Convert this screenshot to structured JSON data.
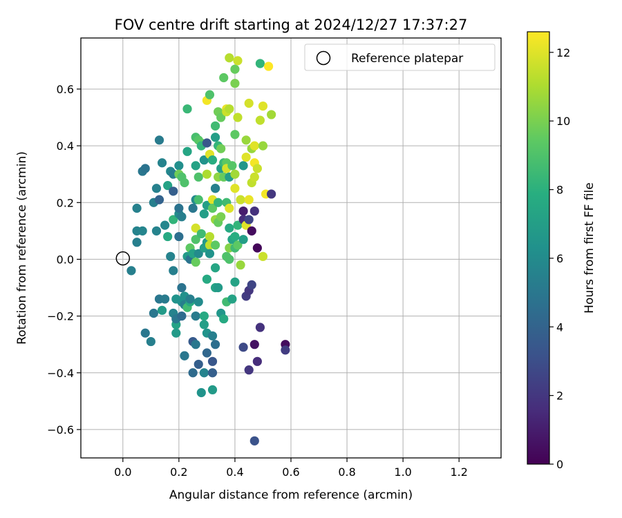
{
  "chart_data": {
    "type": "scatter",
    "title": "FOV centre drift starting at 2024/12/27 17:37:27",
    "xlabel": "Angular distance from reference (arcmin)",
    "ylabel": "Rotation from reference (arcmin)",
    "xlim": [
      -0.15,
      1.35
    ],
    "ylim": [
      -0.7,
      0.78
    ],
    "xticks": [
      0.0,
      0.2,
      0.4,
      0.6,
      0.8,
      1.0,
      1.2
    ],
    "xtick_labels": [
      "0.0",
      "0.2",
      "0.4",
      "0.6",
      "0.8",
      "1.0",
      "1.2"
    ],
    "yticks": [
      -0.6,
      -0.4,
      -0.2,
      0.0,
      0.2,
      0.4,
      0.6
    ],
    "ytick_labels": [
      "−0.6",
      "−0.4",
      "−0.2",
      "0.0",
      "0.2",
      "0.4",
      "0.6"
    ],
    "grid": true,
    "legend": {
      "placement": "top-right",
      "entries": [
        "Reference platepar"
      ]
    },
    "colorbar": {
      "label": "Hours from first FF file",
      "colormap": "viridis",
      "range": [
        0,
        12.6
      ],
      "ticks": [
        0,
        2,
        4,
        6,
        8,
        10,
        12
      ],
      "tick_labels": [
        "0",
        "2",
        "4",
        "6",
        "8",
        "10",
        "12"
      ]
    },
    "reference_point": {
      "name": "Reference platepar",
      "x": 0.0,
      "y": 0.0
    },
    "points": [
      {
        "x": 0.03,
        "y": -0.04,
        "h": 5.4
      },
      {
        "x": 0.05,
        "y": 0.06,
        "h": 5.4
      },
      {
        "x": 0.05,
        "y": 0.1,
        "h": 5.6
      },
      {
        "x": 0.05,
        "y": 0.18,
        "h": 5.5
      },
      {
        "x": 0.07,
        "y": 0.1,
        "h": 5.7
      },
      {
        "x": 0.07,
        "y": 0.31,
        "h": 5.0
      },
      {
        "x": 0.08,
        "y": 0.32,
        "h": 4.8
      },
      {
        "x": 0.08,
        "y": -0.26,
        "h": 5.0
      },
      {
        "x": 0.1,
        "y": -0.29,
        "h": 5.4
      },
      {
        "x": 0.11,
        "y": -0.19,
        "h": 5.0
      },
      {
        "x": 0.11,
        "y": 0.2,
        "h": 5.4
      },
      {
        "x": 0.12,
        "y": 0.1,
        "h": 5.6
      },
      {
        "x": 0.12,
        "y": 0.25,
        "h": 5.5
      },
      {
        "x": 0.13,
        "y": 0.42,
        "h": 5.2
      },
      {
        "x": 0.13,
        "y": 0.21,
        "h": 4.0
      },
      {
        "x": 0.13,
        "y": -0.14,
        "h": 5.0
      },
      {
        "x": 0.14,
        "y": -0.18,
        "h": 6.8
      },
      {
        "x": 0.14,
        "y": 0.34,
        "h": 5.6
      },
      {
        "x": 0.15,
        "y": 0.12,
        "h": 5.8
      },
      {
        "x": 0.15,
        "y": -0.14,
        "h": 5.2
      },
      {
        "x": 0.16,
        "y": 0.26,
        "h": 7.2
      },
      {
        "x": 0.16,
        "y": 0.08,
        "h": 7.6
      },
      {
        "x": 0.17,
        "y": 0.31,
        "h": 5.8
      },
      {
        "x": 0.17,
        "y": 0.01,
        "h": 5.6
      },
      {
        "x": 0.18,
        "y": 0.24,
        "h": 3.8
      },
      {
        "x": 0.18,
        "y": 0.14,
        "h": 8.2
      },
      {
        "x": 0.18,
        "y": 0.3,
        "h": 5.3
      },
      {
        "x": 0.18,
        "y": -0.04,
        "h": 5.4
      },
      {
        "x": 0.18,
        "y": -0.19,
        "h": 5.6
      },
      {
        "x": 0.19,
        "y": -0.23,
        "h": 7.2
      },
      {
        "x": 0.19,
        "y": -0.26,
        "h": 6.8
      },
      {
        "x": 0.19,
        "y": -0.14,
        "h": 6.4
      },
      {
        "x": 0.19,
        "y": -0.21,
        "h": 5.0
      },
      {
        "x": 0.2,
        "y": 0.16,
        "h": 6.0
      },
      {
        "x": 0.2,
        "y": 0.18,
        "h": 4.8
      },
      {
        "x": 0.2,
        "y": 0.33,
        "h": 6.2
      },
      {
        "x": 0.2,
        "y": 0.3,
        "h": 9.8
      },
      {
        "x": 0.2,
        "y": 0.08,
        "h": 4.6
      },
      {
        "x": 0.21,
        "y": 0.29,
        "h": 9.0
      },
      {
        "x": 0.21,
        "y": 0.15,
        "h": 5.4
      },
      {
        "x": 0.21,
        "y": -0.1,
        "h": 4.8
      },
      {
        "x": 0.21,
        "y": -0.15,
        "h": 6.3
      },
      {
        "x": 0.21,
        "y": -0.2,
        "h": 4.4
      },
      {
        "x": 0.22,
        "y": 0.27,
        "h": 9.0
      },
      {
        "x": 0.22,
        "y": -0.34,
        "h": 5.6
      },
      {
        "x": 0.22,
        "y": -0.34,
        "h": 5.0
      },
      {
        "x": 0.22,
        "y": -0.13,
        "h": 6.3
      },
      {
        "x": 0.22,
        "y": -0.16,
        "h": 5.4
      },
      {
        "x": 0.23,
        "y": 0.53,
        "h": 8.4
      },
      {
        "x": 0.23,
        "y": 0.38,
        "h": 7.4
      },
      {
        "x": 0.23,
        "y": 0.01,
        "h": 6.8
      },
      {
        "x": 0.23,
        "y": -0.17,
        "h": 8.6
      },
      {
        "x": 0.24,
        "y": 0.04,
        "h": 9.4
      },
      {
        "x": 0.24,
        "y": 0.0,
        "h": 4.8
      },
      {
        "x": 0.24,
        "y": -0.15,
        "h": 7.6
      },
      {
        "x": 0.24,
        "y": -0.14,
        "h": 5.4
      },
      {
        "x": 0.25,
        "y": 0.18,
        "h": 5.0
      },
      {
        "x": 0.25,
        "y": 0.02,
        "h": 7.2
      },
      {
        "x": 0.25,
        "y": -0.29,
        "h": 3.6
      },
      {
        "x": 0.25,
        "y": -0.4,
        "h": 4.4
      },
      {
        "x": 0.26,
        "y": 0.43,
        "h": 8.8
      },
      {
        "x": 0.26,
        "y": 0.33,
        "h": 7.2
      },
      {
        "x": 0.26,
        "y": 0.21,
        "h": 6.0
      },
      {
        "x": 0.26,
        "y": 0.11,
        "h": 11.8
      },
      {
        "x": 0.26,
        "y": 0.07,
        "h": 9.0
      },
      {
        "x": 0.26,
        "y": -0.01,
        "h": 9.6
      },
      {
        "x": 0.26,
        "y": -0.3,
        "h": 5.0
      },
      {
        "x": 0.26,
        "y": -0.2,
        "h": 5.2
      },
      {
        "x": 0.27,
        "y": 0.42,
        "h": 9.2
      },
      {
        "x": 0.27,
        "y": 0.29,
        "h": 9.0
      },
      {
        "x": 0.27,
        "y": 0.21,
        "h": 8.8
      },
      {
        "x": 0.27,
        "y": 0.02,
        "h": 6.0
      },
      {
        "x": 0.27,
        "y": -0.15,
        "h": 6.0
      },
      {
        "x": 0.27,
        "y": -0.37,
        "h": 3.8
      },
      {
        "x": 0.28,
        "y": 0.41,
        "h": 9.4
      },
      {
        "x": 0.28,
        "y": 0.4,
        "h": 8.2
      },
      {
        "x": 0.28,
        "y": 0.09,
        "h": 8.6
      },
      {
        "x": 0.28,
        "y": -0.47,
        "h": 6.4
      },
      {
        "x": 0.29,
        "y": 0.35,
        "h": 6.4
      },
      {
        "x": 0.29,
        "y": 0.16,
        "h": 7.0
      },
      {
        "x": 0.29,
        "y": 0.04,
        "h": 7.0
      },
      {
        "x": 0.29,
        "y": -0.2,
        "h": 7.6
      },
      {
        "x": 0.29,
        "y": -0.23,
        "h": 7.0
      },
      {
        "x": 0.29,
        "y": -0.4,
        "h": 5.6
      },
      {
        "x": 0.3,
        "y": 0.41,
        "h": 3.4
      },
      {
        "x": 0.3,
        "y": 0.56,
        "h": 12.4
      },
      {
        "x": 0.3,
        "y": 0.3,
        "h": 11.0
      },
      {
        "x": 0.3,
        "y": 0.19,
        "h": 7.0
      },
      {
        "x": 0.3,
        "y": 0.06,
        "h": 6.8
      },
      {
        "x": 0.3,
        "y": -0.07,
        "h": 7.6
      },
      {
        "x": 0.3,
        "y": -0.26,
        "h": 6.4
      },
      {
        "x": 0.3,
        "y": -0.33,
        "h": 4.2
      },
      {
        "x": 0.31,
        "y": 0.58,
        "h": 9.0
      },
      {
        "x": 0.31,
        "y": 0.37,
        "h": 12.0
      },
      {
        "x": 0.31,
        "y": 0.08,
        "h": 11.2
      },
      {
        "x": 0.31,
        "y": 0.05,
        "h": 11.4
      },
      {
        "x": 0.31,
        "y": 0.02,
        "h": 6.4
      },
      {
        "x": 0.32,
        "y": 0.35,
        "h": 7.8
      },
      {
        "x": 0.32,
        "y": 0.21,
        "h": 12.0
      },
      {
        "x": 0.32,
        "y": 0.18,
        "h": 9.4
      },
      {
        "x": 0.32,
        "y": -0.27,
        "h": 5.4
      },
      {
        "x": 0.32,
        "y": -0.36,
        "h": 3.4
      },
      {
        "x": 0.32,
        "y": -0.46,
        "h": 6.8
      },
      {
        "x": 0.32,
        "y": -0.4,
        "h": 3.8
      },
      {
        "x": 0.33,
        "y": 0.43,
        "h": 7.0
      },
      {
        "x": 0.33,
        "y": 0.47,
        "h": 8.6
      },
      {
        "x": 0.33,
        "y": 0.25,
        "h": 8.6
      },
      {
        "x": 0.33,
        "y": 0.25,
        "h": 5.4
      },
      {
        "x": 0.33,
        "y": 0.14,
        "h": 10.6
      },
      {
        "x": 0.33,
        "y": 0.05,
        "h": 9.4
      },
      {
        "x": 0.33,
        "y": -0.03,
        "h": 7.4
      },
      {
        "x": 0.33,
        "y": -0.1,
        "h": 7.2
      },
      {
        "x": 0.33,
        "y": -0.3,
        "h": 4.6
      },
      {
        "x": 0.34,
        "y": 0.52,
        "h": 9.8
      },
      {
        "x": 0.34,
        "y": 0.4,
        "h": 8.2
      },
      {
        "x": 0.34,
        "y": 0.29,
        "h": 10.4
      },
      {
        "x": 0.34,
        "y": 0.2,
        "h": 8.2
      },
      {
        "x": 0.34,
        "y": 0.13,
        "h": 9.6
      },
      {
        "x": 0.34,
        "y": -0.1,
        "h": 6.8
      },
      {
        "x": 0.35,
        "y": 0.5,
        "h": 9.6
      },
      {
        "x": 0.35,
        "y": 0.39,
        "h": 9.8
      },
      {
        "x": 0.35,
        "y": 0.32,
        "h": 7.0
      },
      {
        "x": 0.35,
        "y": 0.15,
        "h": 10.0
      },
      {
        "x": 0.35,
        "y": -0.19,
        "h": 6.6
      },
      {
        "x": 0.36,
        "y": 0.64,
        "h": 9.4
      },
      {
        "x": 0.36,
        "y": 0.34,
        "h": 8.4
      },
      {
        "x": 0.36,
        "y": 0.29,
        "h": 9.6
      },
      {
        "x": 0.36,
        "y": -0.21,
        "h": 7.6
      },
      {
        "x": 0.37,
        "y": 0.53,
        "h": 12.2
      },
      {
        "x": 0.37,
        "y": 0.52,
        "h": 11.6
      },
      {
        "x": 0.37,
        "y": 0.34,
        "h": 9.4
      },
      {
        "x": 0.37,
        "y": 0.32,
        "h": 11.8
      },
      {
        "x": 0.37,
        "y": 0.2,
        "h": 8.6
      },
      {
        "x": 0.37,
        "y": 0.01,
        "h": 9.0
      },
      {
        "x": 0.37,
        "y": -0.15,
        "h": 8.6
      },
      {
        "x": 0.38,
        "y": 0.71,
        "h": 11.2
      },
      {
        "x": 0.38,
        "y": 0.53,
        "h": 11.2
      },
      {
        "x": 0.38,
        "y": 0.29,
        "h": 7.0
      },
      {
        "x": 0.38,
        "y": 0.18,
        "h": 12.0
      },
      {
        "x": 0.38,
        "y": 0.11,
        "h": 7.6
      },
      {
        "x": 0.38,
        "y": 0.04,
        "h": 10.2
      },
      {
        "x": 0.38,
        "y": 0.0,
        "h": 9.0
      },
      {
        "x": 0.39,
        "y": 0.33,
        "h": 9.2
      },
      {
        "x": 0.39,
        "y": 0.07,
        "h": 7.4
      },
      {
        "x": 0.39,
        "y": -0.14,
        "h": 7.2
      },
      {
        "x": 0.4,
        "y": 0.67,
        "h": 9.6
      },
      {
        "x": 0.4,
        "y": 0.62,
        "h": 10.0
      },
      {
        "x": 0.4,
        "y": 0.44,
        "h": 9.4
      },
      {
        "x": 0.4,
        "y": 0.3,
        "h": 10.8
      },
      {
        "x": 0.4,
        "y": 0.25,
        "h": 12.0
      },
      {
        "x": 0.4,
        "y": 0.08,
        "h": 7.8
      },
      {
        "x": 0.4,
        "y": 0.04,
        "h": 8.6
      },
      {
        "x": 0.4,
        "y": -0.08,
        "h": 7.2
      },
      {
        "x": 0.41,
        "y": 0.7,
        "h": 11.6
      },
      {
        "x": 0.41,
        "y": 0.5,
        "h": 11.4
      },
      {
        "x": 0.41,
        "y": 0.12,
        "h": 8.2
      },
      {
        "x": 0.41,
        "y": 0.05,
        "h": 9.4
      },
      {
        "x": 0.42,
        "y": 0.21,
        "h": 11.6
      },
      {
        "x": 0.42,
        "y": -0.02,
        "h": 10.6
      },
      {
        "x": 0.43,
        "y": 0.33,
        "h": 6.6
      },
      {
        "x": 0.43,
        "y": 0.17,
        "h": 1.0
      },
      {
        "x": 0.43,
        "y": 0.14,
        "h": 1.6
      },
      {
        "x": 0.43,
        "y": 0.07,
        "h": 7.0
      },
      {
        "x": 0.43,
        "y": -0.31,
        "h": 2.8
      },
      {
        "x": 0.44,
        "y": 0.42,
        "h": 10.6
      },
      {
        "x": 0.44,
        "y": 0.36,
        "h": 12.0
      },
      {
        "x": 0.44,
        "y": 0.12,
        "h": 12.0
      },
      {
        "x": 0.44,
        "y": -0.13,
        "h": 2.2
      },
      {
        "x": 0.45,
        "y": 0.55,
        "h": 11.8
      },
      {
        "x": 0.45,
        "y": 0.14,
        "h": 2.6
      },
      {
        "x": 0.45,
        "y": 0.21,
        "h": 12.2
      },
      {
        "x": 0.45,
        "y": -0.11,
        "h": 2.0
      },
      {
        "x": 0.45,
        "y": -0.39,
        "h": 2.0
      },
      {
        "x": 0.46,
        "y": 0.39,
        "h": 10.6
      },
      {
        "x": 0.46,
        "y": 0.27,
        "h": 11.4
      },
      {
        "x": 0.46,
        "y": 0.1,
        "h": 0.4
      },
      {
        "x": 0.46,
        "y": -0.09,
        "h": 2.6
      },
      {
        "x": 0.47,
        "y": 0.4,
        "h": 12.0
      },
      {
        "x": 0.47,
        "y": 0.34,
        "h": 12.4
      },
      {
        "x": 0.47,
        "y": 0.29,
        "h": 11.6
      },
      {
        "x": 0.47,
        "y": 0.17,
        "h": 1.8
      },
      {
        "x": 0.47,
        "y": -0.3,
        "h": 0.6
      },
      {
        "x": 0.47,
        "y": -0.64,
        "h": 3.2
      },
      {
        "x": 0.48,
        "y": 0.32,
        "h": 11.6
      },
      {
        "x": 0.48,
        "y": 0.04,
        "h": 0.2
      },
      {
        "x": 0.48,
        "y": -0.36,
        "h": 1.6
      },
      {
        "x": 0.49,
        "y": 0.49,
        "h": 11.4
      },
      {
        "x": 0.49,
        "y": 0.69,
        "h": 8.2
      },
      {
        "x": 0.49,
        "y": -0.24,
        "h": 1.8
      },
      {
        "x": 0.5,
        "y": 0.54,
        "h": 12.0
      },
      {
        "x": 0.5,
        "y": 0.4,
        "h": 10.6
      },
      {
        "x": 0.5,
        "y": 0.01,
        "h": 11.6
      },
      {
        "x": 0.51,
        "y": 0.23,
        "h": 12.4
      },
      {
        "x": 0.52,
        "y": 0.68,
        "h": 12.6
      },
      {
        "x": 0.53,
        "y": 0.51,
        "h": 10.8
      },
      {
        "x": 0.53,
        "y": 0.23,
        "h": 2.0
      },
      {
        "x": 0.58,
        "y": -0.3,
        "h": 0.4
      },
      {
        "x": 0.58,
        "y": -0.32,
        "h": 2.2
      }
    ]
  }
}
